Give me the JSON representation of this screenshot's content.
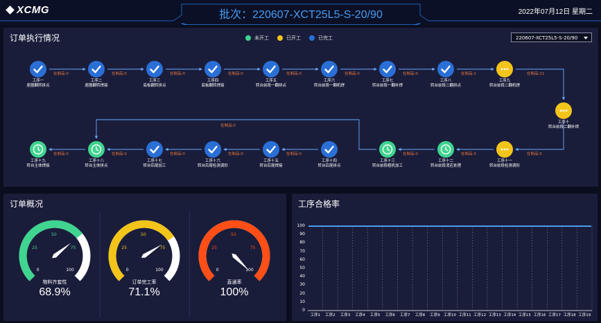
{
  "header": {
    "logo": "XCMG",
    "title": "批次：220607-XCT25L5-S-20/90",
    "date": "2022年07月12日",
    "weekday": "星期二"
  },
  "order_panel": {
    "title": "订单执行情况",
    "legend": [
      {
        "label": "未开工",
        "color": "#3fd48f"
      },
      {
        "label": "已开工",
        "color": "#f3c41a"
      },
      {
        "label": "已完工",
        "color": "#2a6fd6"
      }
    ],
    "batch_select": "220607-XCT25L5-S-20/90",
    "steps": [
      {
        "name": "工序一",
        "desc": "座圈翻转拼点",
        "status": "done"
      },
      {
        "name": "工序二",
        "desc": "座圈翻转焊接",
        "status": "done"
      },
      {
        "name": "工序三",
        "desc": "底板翻转拼点",
        "status": "done"
      },
      {
        "name": "工序四",
        "desc": "底板翻转焊接",
        "status": "done"
      },
      {
        "name": "工序五",
        "desc": "转台前段一翻拼点",
        "status": "done"
      },
      {
        "name": "工序六",
        "desc": "转台前段一翻机焊",
        "status": "done"
      },
      {
        "name": "工序七",
        "desc": "转台前段一翻补焊",
        "status": "done"
      },
      {
        "name": "工序八",
        "desc": "转台前段二翻拼点",
        "status": "done"
      },
      {
        "name": "工序九",
        "desc": "转台前段二翻机焊",
        "status": "prog"
      },
      {
        "name": "工序十",
        "desc": "转台前段二翻补焊",
        "status": "prog"
      },
      {
        "name": "工序十一",
        "desc": "转台前段检测调形",
        "status": "prog"
      },
      {
        "name": "工序十二",
        "desc": "转台前段消应处理",
        "status": "todo"
      },
      {
        "name": "工序十三",
        "desc": "转台前段粗机加工",
        "status": "todo"
      },
      {
        "name": "工序十四",
        "desc": "转台后尾拼点",
        "status": "done"
      },
      {
        "name": "工序十五",
        "desc": "转台后尾焊接",
        "status": "done"
      },
      {
        "name": "工序十六",
        "desc": "转台后尾检测调形",
        "status": "done"
      },
      {
        "name": "工序十七",
        "desc": "转台后尾加工",
        "status": "done"
      },
      {
        "name": "工序十八",
        "desc": "转台主体拼点",
        "status": "todo"
      },
      {
        "name": "工序十九",
        "desc": "转台主体焊接",
        "status": "todo"
      }
    ],
    "edges": [
      "在制品:0",
      "在制品:0",
      "在制品:0",
      "在制品:0",
      "在制品:0",
      "在制品:0",
      "在制品:0",
      "在制品:1",
      "在制品:11",
      "在制品:5",
      "在制品:3",
      "在制品:0",
      "在制品:0",
      "在制品:0",
      "在制品:0",
      "在制品:0",
      "在制品:0",
      "在制品:0"
    ]
  },
  "overview": {
    "title": "订单概况",
    "gauges": [
      {
        "name": "物料齐套性",
        "value": 68.9,
        "display": "68.9%",
        "color": "#3fd48f",
        "ticks": [
          "0",
          "25",
          "50",
          "75",
          "100"
        ]
      },
      {
        "name": "订单完工率",
        "value": 71.1,
        "display": "71.1%",
        "color": "#f3c41a",
        "ticks": [
          "0",
          "25",
          "50",
          "75",
          "100"
        ]
      },
      {
        "name": "直通率",
        "value": 100,
        "display": "100%",
        "color": "#ff4e16",
        "ticks": [
          "0",
          "25",
          "50",
          "75",
          "100"
        ]
      }
    ]
  },
  "pass_rate": {
    "title": "工序合格率",
    "chart_data": {
      "type": "line",
      "categories": [
        "工序1",
        "工序2",
        "工序3",
        "工序4",
        "工序5",
        "工序6",
        "工序7",
        "工序8",
        "工序9",
        "工序10",
        "工序11",
        "工序12",
        "工序13",
        "工序14",
        "工序15",
        "工序16",
        "工序17",
        "工序18",
        "工序19"
      ],
      "series": [
        {
          "values": [
            100,
            100,
            100,
            100,
            100,
            100,
            100,
            100,
            100,
            100,
            100,
            100,
            100,
            100,
            100,
            100,
            100,
            100,
            100
          ]
        }
      ],
      "ylim": [
        0,
        100
      ],
      "yticks": [
        "0",
        "10",
        "20",
        "30",
        "40",
        "50",
        "60",
        "70",
        "80",
        "90",
        "100"
      ],
      "color": "#4a9cf0"
    }
  }
}
